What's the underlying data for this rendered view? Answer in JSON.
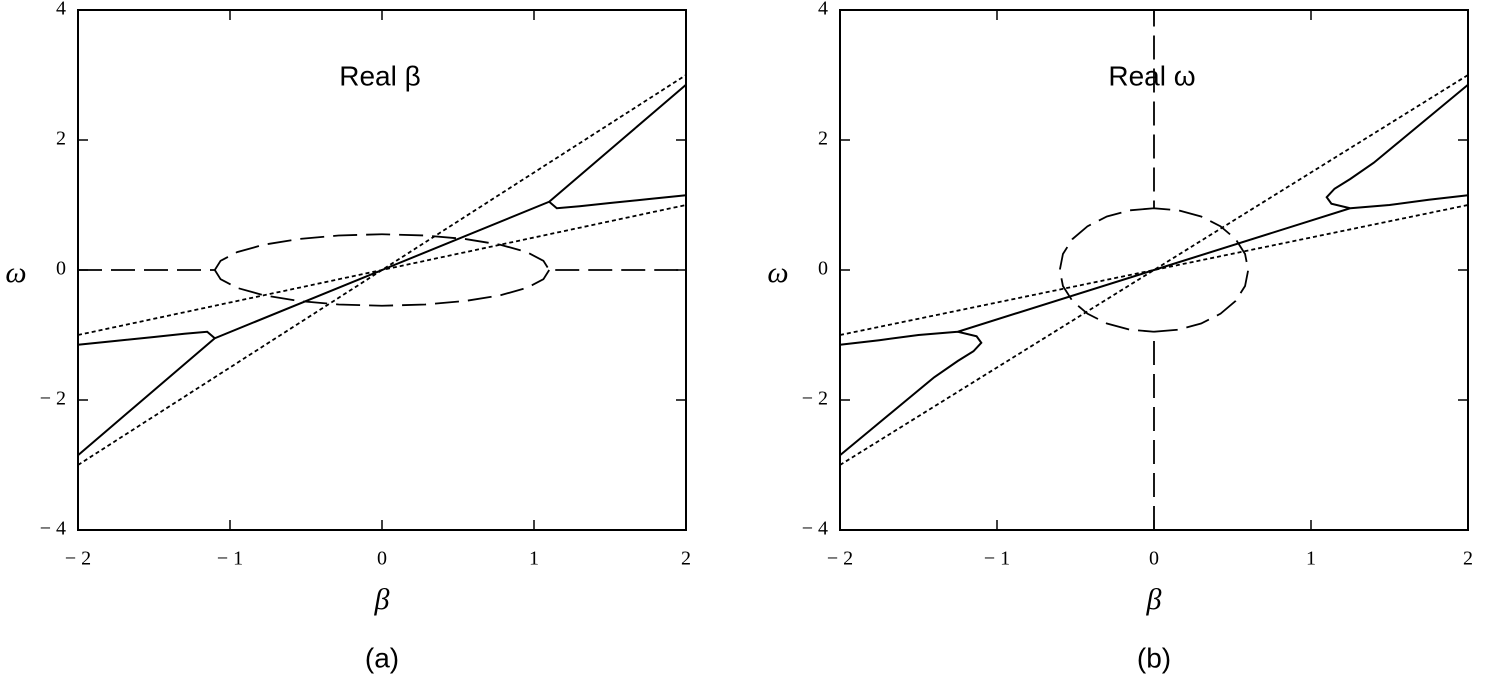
{
  "chart_data": [
    {
      "type": "line",
      "annotation": "Real β",
      "xlabel": "β",
      "ylabel": "ω",
      "panel_label": "(a)",
      "xlim": [
        -2,
        2
      ],
      "ylim": [
        -4,
        4
      ],
      "xticks": [
        {
          "value": -2,
          "label": "− 2"
        },
        {
          "value": -1,
          "label": "− 1"
        },
        0,
        1,
        2
      ],
      "yticks": [
        {
          "value": -4,
          "label": "− 4"
        },
        {
          "value": -2,
          "label": "− 2"
        },
        0,
        2,
        4
      ],
      "grid": false,
      "series": [
        {
          "color": "#000000",
          "linestyle": "dotted",
          "x": [
            -2,
            2
          ],
          "values": [
            -3,
            3
          ]
        },
        {
          "color": "#000000",
          "linestyle": "dotted",
          "x": [
            -2,
            2
          ],
          "values": [
            -1,
            1
          ]
        },
        {
          "color": "#000000",
          "linestyle": "solid",
          "x": [
            2,
            1.75,
            1.5,
            1.3,
            1.15,
            1.1,
            0,
            -1.1,
            -1.15,
            -1.3,
            -1.5,
            -1.75,
            -2,
            null,
            2,
            1.8,
            1.6,
            1.4,
            1.25,
            1.15,
            1.1,
            null,
            -2,
            -1.8,
            -1.6,
            -1.4,
            -1.25,
            -1.15,
            -1.1
          ],
          "values": [
            1.15,
            1.09,
            1.03,
            0.98,
            0.95,
            1.05,
            0,
            -1.05,
            -0.95,
            -0.98,
            -1.03,
            -1.09,
            -1.15,
            null,
            2.85,
            2.45,
            2.05,
            1.65,
            1.35,
            1.15,
            1.05,
            null,
            -2.85,
            -2.45,
            -2.05,
            -1.65,
            -1.35,
            -1.15,
            -1.05
          ]
        },
        {
          "color": "#000000",
          "linestyle": "dashed",
          "x": [
            -2,
            -1.1,
            -1.062,
            -0.953,
            -0.778,
            -0.55,
            -0.285,
            0,
            0.285,
            0.55,
            0.778,
            0.953,
            1.062,
            1.1,
            2,
            null,
            1.1,
            1.062,
            0.953,
            0.778,
            0.55,
            0.285,
            0,
            -0.285,
            -0.55,
            -0.778,
            -0.953,
            -1.062,
            -1.1
          ],
          "values": [
            0,
            0,
            0.142,
            0.275,
            0.389,
            0.476,
            0.531,
            0.55,
            0.531,
            0.476,
            0.389,
            0.275,
            0.142,
            0,
            0,
            null,
            0,
            -0.142,
            -0.275,
            -0.389,
            -0.476,
            -0.531,
            -0.55,
            -0.531,
            -0.476,
            -0.389,
            -0.275,
            -0.142,
            0
          ]
        }
      ]
    },
    {
      "type": "line",
      "annotation": "Real ω",
      "xlabel": "β",
      "ylabel": "ω",
      "panel_label": "(b)",
      "xlim": [
        -2,
        2
      ],
      "ylim": [
        -4,
        4
      ],
      "xticks": [
        {
          "value": -2,
          "label": "− 2"
        },
        {
          "value": -1,
          "label": "− 1"
        },
        0,
        1,
        2
      ],
      "yticks": [
        {
          "value": -4,
          "label": "− 4"
        },
        {
          "value": -2,
          "label": "− 2"
        },
        0,
        2,
        4
      ],
      "grid": false,
      "series": [
        {
          "color": "#000000",
          "linestyle": "dotted",
          "x": [
            -2,
            2
          ],
          "values": [
            -3,
            3
          ]
        },
        {
          "color": "#000000",
          "linestyle": "dotted",
          "x": [
            -2,
            2
          ],
          "values": [
            -1,
            1
          ]
        },
        {
          "color": "#000000",
          "linestyle": "solid",
          "x": [
            2,
            1.8,
            1.6,
            1.4,
            1.25,
            1.15,
            1.1,
            1.13,
            1.25,
            0,
            -1.25,
            -1.13,
            -1.1,
            -1.15,
            -1.25,
            -1.4,
            -1.6,
            -1.8,
            -2,
            null,
            1.25,
            1.5,
            1.75,
            2,
            null,
            -1.25,
            -1.5,
            -1.75,
            -2
          ],
          "values": [
            2.85,
            2.45,
            2.05,
            1.65,
            1.4,
            1.25,
            1.12,
            1.02,
            0.95,
            0,
            -0.95,
            -1.02,
            -1.12,
            -1.25,
            -1.4,
            -1.65,
            -2.05,
            -2.45,
            -2.85,
            null,
            0.95,
            1.0,
            1.08,
            1.15,
            null,
            -0.95,
            -1.0,
            -1.08,
            -1.15
          ]
        },
        {
          "color": "#000000",
          "linestyle": "dashed",
          "x": [
            0,
            0,
            0.155,
            0.3,
            0.424,
            0.52,
            0.58,
            0.6,
            0.58,
            0.52,
            0.424,
            0.3,
            0.155,
            0,
            0,
            null,
            0,
            -0.155,
            -0.3,
            -0.424,
            -0.52,
            -0.58,
            -0.6,
            -0.58,
            -0.52,
            -0.424,
            -0.3,
            -0.155,
            0
          ],
          "values": [
            -4,
            -0.95,
            -0.918,
            -0.823,
            -0.672,
            -0.475,
            -0.246,
            0,
            0.246,
            0.475,
            0.672,
            0.823,
            0.918,
            0.95,
            4,
            null,
            0.95,
            0.918,
            0.823,
            0.672,
            0.475,
            0.246,
            0,
            -0.246,
            -0.475,
            -0.672,
            -0.823,
            -0.918,
            -0.95
          ]
        }
      ]
    }
  ]
}
